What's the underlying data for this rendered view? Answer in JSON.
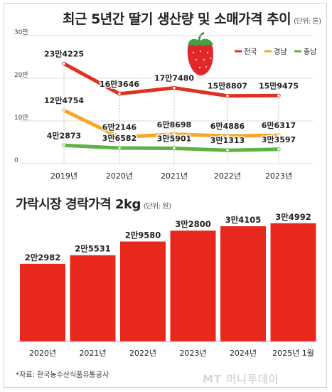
{
  "chart_data": [
    {
      "type": "line",
      "title": "최근 5년간 딸기 생산량 및 소매가격 추이",
      "unit_note": "(단위: 톤)",
      "categories": [
        "2019년",
        "2020년",
        "2021년",
        "2022년",
        "2023년"
      ],
      "y_ticks": [
        "0",
        "10만",
        "20만",
        "30만"
      ],
      "ylim": [
        0,
        300000
      ],
      "legend_position": "top-right",
      "series": [
        {
          "name": "전국",
          "color": "#e03022",
          "values": [
            234225,
            163646,
            177480,
            158807,
            159475
          ],
          "labels": [
            "23만4225",
            "16만3646",
            "17만7480",
            "15만8807",
            "15만9475"
          ]
        },
        {
          "name": "경남",
          "color": "#f6a724",
          "values": [
            124754,
            62146,
            68698,
            64886,
            66317
          ],
          "labels": [
            "12만4754",
            "6만2146",
            "6만8698",
            "6만4886",
            "6만6317"
          ]
        },
        {
          "name": "충남",
          "color": "#5fb244",
          "values": [
            42873,
            36582,
            35901,
            31313,
            33597
          ],
          "labels": [
            "4만2873",
            "3만6582",
            "3만5901",
            "3만1313",
            "3만3597"
          ]
        }
      ]
    },
    {
      "type": "bar",
      "title": "가락시장 경락가격 2kg",
      "unit_note": "(단위: 원)",
      "categories": [
        "2020년",
        "2021년",
        "2022년",
        "2023년",
        "2024년",
        "2025년 1월"
      ],
      "values": [
        22982,
        25531,
        29580,
        32800,
        34105,
        34992
      ],
      "labels": [
        "2만2982",
        "2만5531",
        "2만9580",
        "3만2800",
        "3만4105",
        "3만4992"
      ],
      "color": "#e8271d"
    }
  ],
  "source": "*자료: 한국농수산식품유통공사",
  "watermark": "MT 머니투데이",
  "icons": {
    "strawberry": "strawberry-icon"
  }
}
